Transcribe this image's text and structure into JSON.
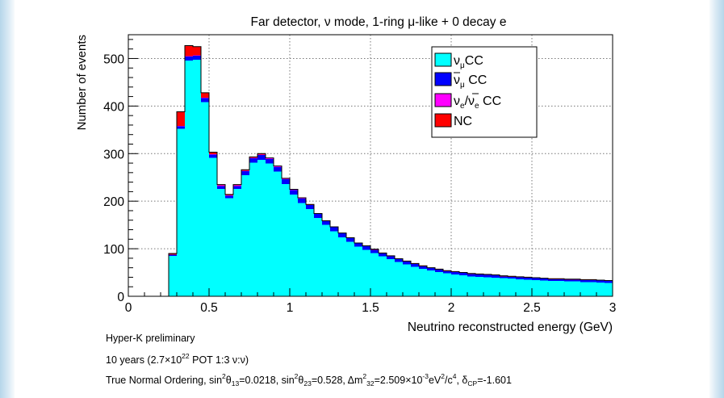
{
  "chart_data": {
    "type": "bar",
    "title": "Far detector, ν mode, 1-ring μ-like + 0 decay e",
    "xlabel": "Neutrino reconstructed energy (GeV)",
    "ylabel": "Number of events",
    "xlim": [
      0,
      3
    ],
    "ylim": [
      0,
      550
    ],
    "x_ticks": [
      0,
      0.5,
      1,
      1.5,
      2,
      2.5,
      3
    ],
    "x_tick_labels": [
      "0",
      "0.5",
      "1",
      "1.5",
      "2",
      "2.5",
      "3"
    ],
    "y_ticks": [
      0,
      100,
      200,
      300,
      400,
      500
    ],
    "y_tick_labels": [
      "0",
      "100",
      "200",
      "300",
      "400",
      "500"
    ],
    "grid": true,
    "stacked": true,
    "legend_position": "top-right",
    "bin_edges": [
      0,
      0.05,
      0.1,
      0.15,
      0.2,
      0.25,
      0.3,
      0.35,
      0.4,
      0.45,
      0.5,
      0.55,
      0.6,
      0.65,
      0.7,
      0.75,
      0.8,
      0.85,
      0.9,
      0.95,
      1.0,
      1.05,
      1.1,
      1.15,
      1.2,
      1.25,
      1.3,
      1.35,
      1.4,
      1.45,
      1.5,
      1.55,
      1.6,
      1.65,
      1.7,
      1.75,
      1.8,
      1.85,
      1.9,
      1.95,
      2.0,
      2.05,
      2.1,
      2.15,
      2.2,
      2.25,
      2.3,
      2.35,
      2.4,
      2.45,
      2.5,
      2.55,
      2.6,
      2.65,
      2.7,
      2.75,
      2.8,
      2.85,
      2.9,
      2.95,
      3.0
    ],
    "series": [
      {
        "name": "ν_μCC",
        "color": "#00ffff",
        "values": [
          0,
          0,
          0,
          0,
          0,
          85,
          352,
          496,
          497,
          408,
          291,
          226,
          206,
          226,
          255,
          281,
          287,
          279,
          262,
          236,
          214,
          196,
          183,
          165,
          150,
          137,
          124,
          115,
          104,
          98,
          91,
          84,
          78,
          72,
          67,
          62,
          58,
          54,
          51,
          48,
          46,
          44,
          42,
          41,
          40,
          39,
          38,
          37,
          36,
          35,
          34,
          33,
          32,
          32,
          31,
          31,
          30,
          30,
          29,
          28
        ]
      },
      {
        "name": "ν̄_μ CC",
        "color": "#0000ff",
        "values": [
          0,
          0,
          0,
          0,
          0,
          2,
          5,
          8,
          9,
          9,
          7,
          6,
          5,
          6,
          8,
          9,
          10,
          10,
          10,
          10,
          9,
          9,
          9,
          8,
          8,
          8,
          8,
          7,
          7,
          7,
          7,
          6,
          6,
          6,
          6,
          6,
          5,
          5,
          5,
          5,
          5,
          5,
          5,
          5,
          5,
          5,
          4,
          4,
          4,
          4,
          4,
          4,
          4,
          4,
          4,
          4,
          4,
          4,
          4,
          4
        ]
      },
      {
        "name": "ν_e/ν̄_e CC",
        "color": "#ff00ff",
        "values": [
          0,
          0,
          0,
          0,
          0,
          0,
          1,
          1,
          1,
          1,
          1,
          1,
          1,
          1,
          1,
          1,
          1,
          1,
          1,
          1,
          1,
          1,
          0,
          0,
          0,
          0,
          0,
          0,
          0,
          0,
          0,
          0,
          0,
          0,
          0,
          0,
          0,
          0,
          0,
          0,
          0,
          0,
          0,
          0,
          0,
          0,
          0,
          0,
          0,
          0,
          0,
          0,
          0,
          0,
          0,
          0,
          0,
          0,
          0,
          0
        ]
      },
      {
        "name": "NC",
        "color": "#ff0000",
        "values": [
          0,
          0,
          0,
          0,
          0,
          3,
          30,
          22,
          18,
          10,
          4,
          2,
          2,
          2,
          2,
          2,
          2,
          1,
          1,
          1,
          1,
          1,
          1,
          1,
          1,
          1,
          1,
          1,
          1,
          1,
          1,
          1,
          1,
          1,
          1,
          1,
          1,
          1,
          1,
          1,
          1,
          1,
          1,
          1,
          1,
          1,
          1,
          1,
          1,
          1,
          1,
          1,
          1,
          1,
          1,
          1,
          1,
          1,
          1,
          1
        ]
      }
    ]
  },
  "legend": {
    "numu_base": "ν",
    "numu_sub": "μ",
    "numu_suffix": "CC",
    "numubar_base": "ν",
    "numubar_sub": "μ",
    "numubar_suffix": " CC",
    "nue_base1": "ν",
    "nue_sub1": "e",
    "nue_sep": "/",
    "nue_base2": "ν",
    "nue_sub2": "e",
    "nue_suffix": " CC",
    "nc": "NC"
  },
  "footer": {
    "line1": "Hyper-K preliminary",
    "line2_a": "10 years (2.7×10",
    "line2_exp": "22",
    "line2_b": " POT 1:3 ν:ν)",
    "line3_a": "True Normal Ordering, sin",
    "line3_sup1": "2",
    "line3_b": "θ",
    "line3_sub1": "13",
    "line3_c": "=0.0218, sin",
    "line3_sup2": "2",
    "line3_d": "θ",
    "line3_sub2": "23",
    "line3_e": "=0.528, Δm",
    "line3_sup3": "2",
    "line3_sub3": "32",
    "line3_f": "=2.509×10",
    "line3_sup4": "-3",
    "line3_g": "eV",
    "line3_sup5": "2",
    "line3_h": "/c",
    "line3_sup6": "4",
    "line3_i": ", δ",
    "line3_sub4": "CP",
    "line3_j": "=-1.601"
  },
  "colors": {
    "background": "#ffffff",
    "frame_side": "#b6d6ea",
    "grid": "#777777"
  }
}
